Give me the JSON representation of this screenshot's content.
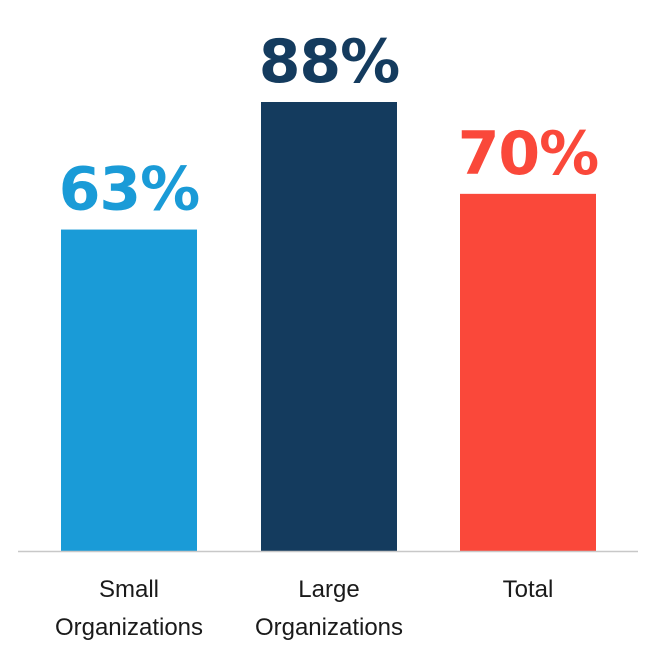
{
  "chart_data": {
    "type": "bar",
    "categories": [
      [
        "Small",
        "Organizations"
      ],
      [
        "Large",
        "Organizations"
      ],
      [
        "Total"
      ]
    ],
    "values": [
      63,
      88,
      70
    ],
    "value_labels": [
      "63%",
      "88%",
      "70%"
    ],
    "unit": "%",
    "ylim": [
      0,
      100
    ],
    "grid": false,
    "legend": "none",
    "colors": [
      "#1a9bd7",
      "#143b5e",
      "#fa483a"
    ],
    "axis_color": "#c8c8c8"
  }
}
